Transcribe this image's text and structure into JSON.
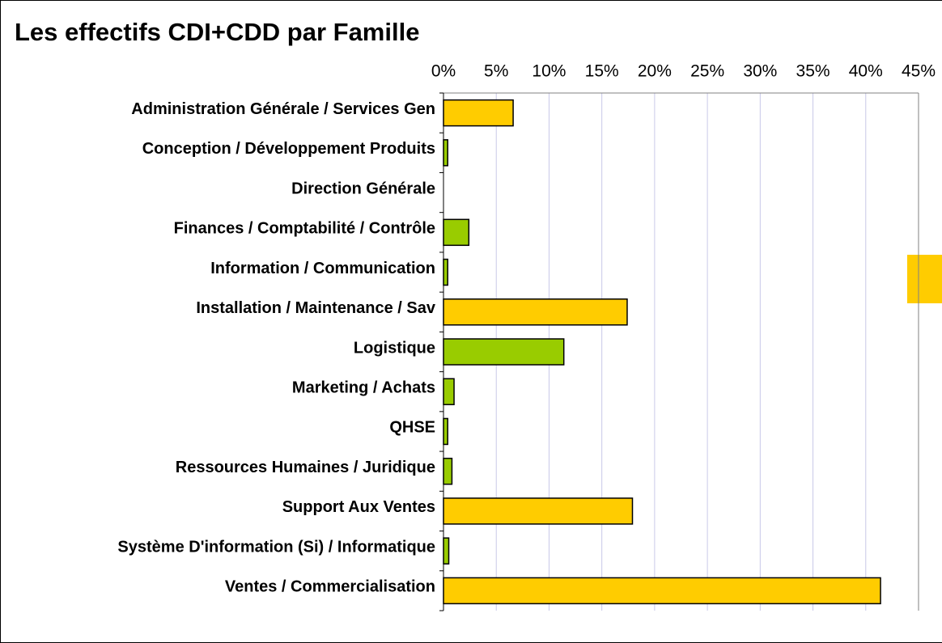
{
  "chart_data": {
    "type": "barh",
    "title": "Les effectifs  CDI+CDD par Famille",
    "categories": [
      "Administration Générale / Services Gen",
      "Conception / Développement Produits",
      "Direction Générale",
      "Finances / Comptabilité / Contrôle",
      "Information / Communication",
      "Installation / Maintenance / Sav",
      "Logistique",
      "Marketing / Achats",
      "QHSE",
      "Ressources Humaines / Juridique",
      "Support Aux Ventes",
      "Système D'information (Si) / Informatique",
      "Ventes / Commercialisation"
    ],
    "values": [
      6.6,
      0.4,
      0,
      2.4,
      0.4,
      17.4,
      11.4,
      1.0,
      0.4,
      0.8,
      17.9,
      0.5,
      41.4
    ],
    "colors": [
      "#ffcc00",
      "#99cc00",
      "#99cc00",
      "#99cc00",
      "#99cc00",
      "#ffcc00",
      "#99cc00",
      "#99cc00",
      "#99cc00",
      "#99cc00",
      "#ffcc00",
      "#99cc00",
      "#ffcc00"
    ],
    "xlim": [
      0,
      45
    ],
    "xticks": [
      {
        "value": 0,
        "label": "0%"
      },
      {
        "value": 5,
        "label": "5%"
      },
      {
        "value": 10,
        "label": "10%"
      },
      {
        "value": 15,
        "label": "15%"
      },
      {
        "value": 20,
        "label": "20%"
      },
      {
        "value": 25,
        "label": "25%"
      },
      {
        "value": 30,
        "label": "30%"
      },
      {
        "value": 35,
        "label": "35%"
      },
      {
        "value": 40,
        "label": "40%"
      },
      {
        "value": 45,
        "label": "45%"
      }
    ],
    "grid": true
  }
}
